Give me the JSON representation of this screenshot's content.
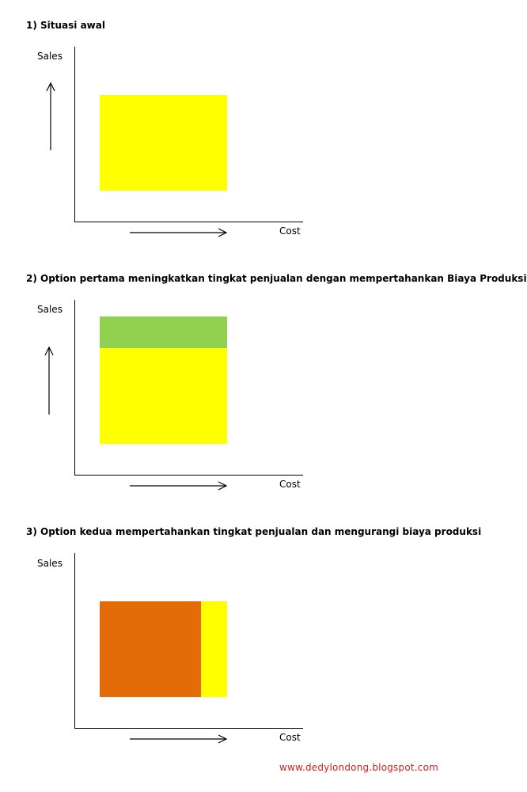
{
  "sections": [
    {
      "title": "1) Situasi awal",
      "y_label": "Sales",
      "x_label": "Cost"
    },
    {
      "title": "2) Option pertama  meningkatkan tingkat penjualan dengan mempertahankan Biaya Produksi",
      "y_label": "Sales",
      "x_label": "Cost"
    },
    {
      "title": "3) Option kedua  mempertahankan tingkat penjualan  dan mengurangi biaya produksi",
      "y_label": "Sales",
      "x_label": "Cost"
    }
  ],
  "colors": {
    "yellow": "#ffff00",
    "green": "#92d050",
    "orange": "#e36c09",
    "footer_red": "#d02020"
  },
  "footer": "www.dedylondong.blogspot.com"
}
